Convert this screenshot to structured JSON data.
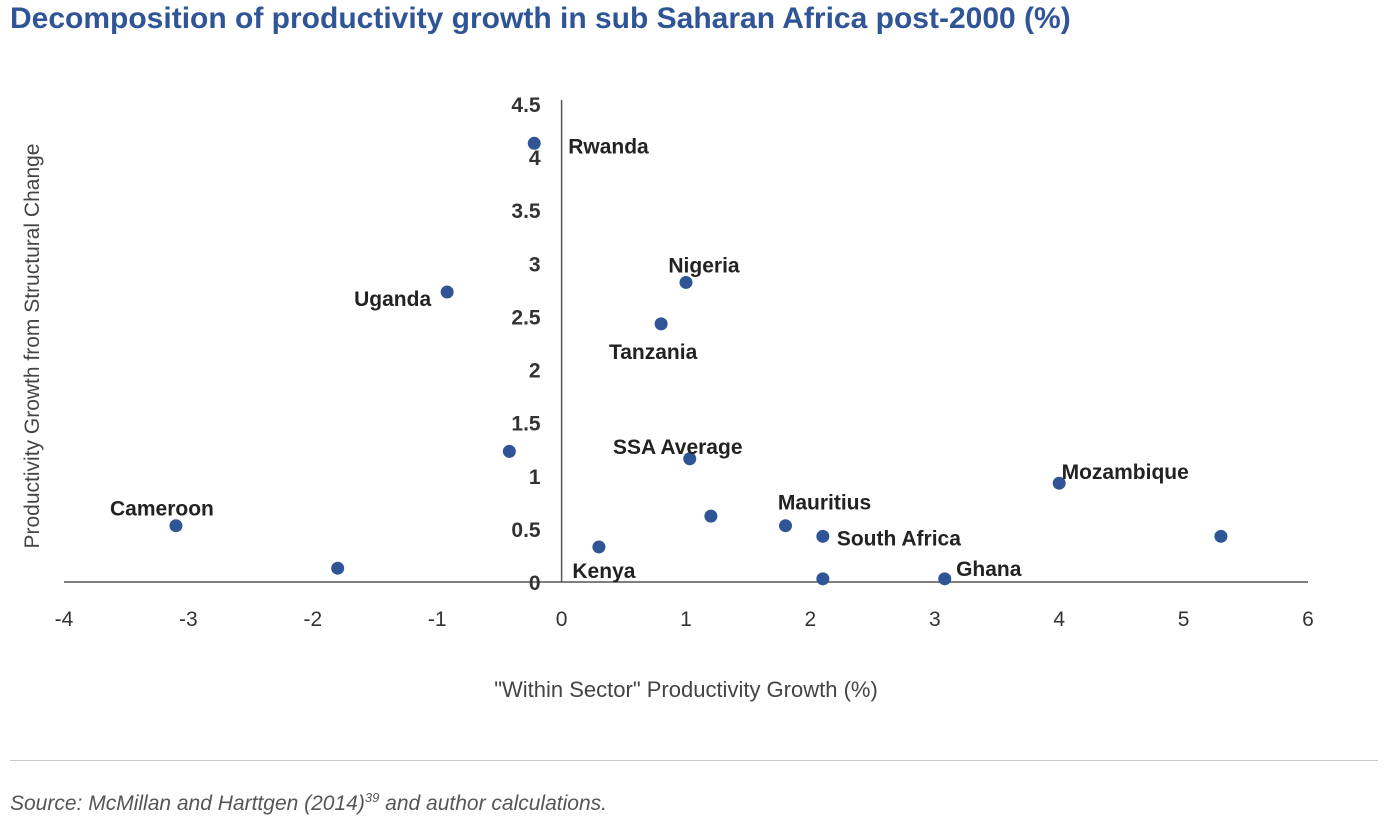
{
  "title": "Decomposition of productivity growth in sub Saharan Africa post-2000 (%)",
  "source": {
    "prefix": "Source: McMillan and Harttgen (2014)",
    "superscript": "39",
    "suffix": " and author calculations."
  },
  "colors": {
    "title": "#2f5597",
    "marker": "#2f5597",
    "axis": "#555555",
    "text": "#222222"
  },
  "chart_data": {
    "type": "scatter",
    "xlabel": "\"Within Sector\" Productivity Growth (%)",
    "ylabel": "Productivity Growth from Structural Change",
    "xlim": [
      -4,
      6
    ],
    "ylim": [
      0,
      4.5
    ],
    "xticks": [
      "-4",
      "-3",
      "-2",
      "-1",
      "0",
      "1",
      "2",
      "3",
      "4",
      "5",
      "6"
    ],
    "yticks": [
      "0",
      "0.5",
      "1",
      "1.5",
      "2",
      "2.5",
      "3",
      "3.5",
      "4",
      "4.5"
    ],
    "grid": false,
    "points": [
      {
        "label": "Rwanda",
        "x": -0.22,
        "y": 4.13
      },
      {
        "label": "Nigeria",
        "x": 1.0,
        "y": 2.82
      },
      {
        "label": "Uganda",
        "x": -0.92,
        "y": 2.73
      },
      {
        "label": "Tanzania",
        "x": 0.8,
        "y": 2.43
      },
      {
        "label": "",
        "x": -0.42,
        "y": 1.23
      },
      {
        "label": "SSA Average",
        "x": 1.03,
        "y": 1.16
      },
      {
        "label": "Mozambique",
        "x": 4.0,
        "y": 0.93
      },
      {
        "label": "",
        "x": 1.2,
        "y": 0.62
      },
      {
        "label": "Cameroon",
        "x": -3.1,
        "y": 0.53
      },
      {
        "label": "Mauritius",
        "x": 1.8,
        "y": 0.53
      },
      {
        "label": "South Africa",
        "x": 2.1,
        "y": 0.43
      },
      {
        "label": "",
        "x": 5.3,
        "y": 0.43
      },
      {
        "label": "Kenya",
        "x": 0.3,
        "y": 0.33
      },
      {
        "label": "",
        "x": -1.8,
        "y": 0.13
      },
      {
        "label": "",
        "x": 2.1,
        "y": 0.03
      },
      {
        "label": "Ghana",
        "x": 3.08,
        "y": 0.03
      }
    ]
  }
}
